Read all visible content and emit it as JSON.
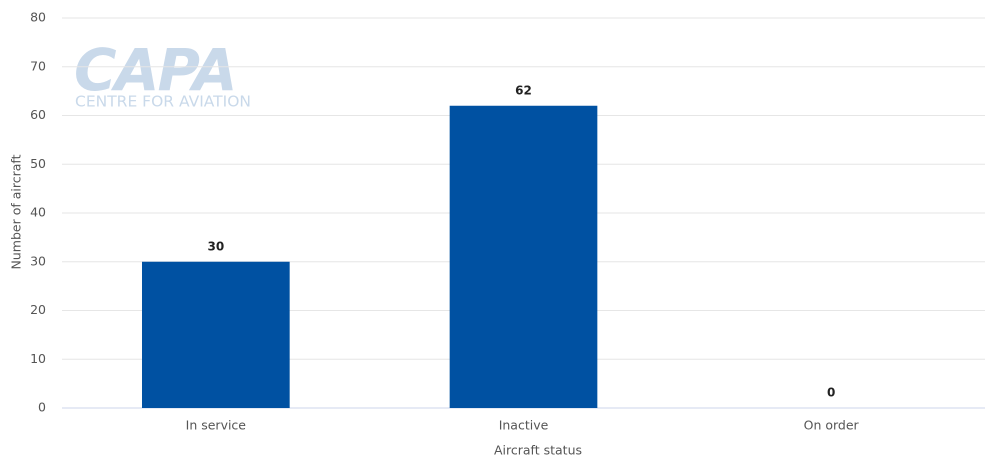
{
  "chart_data": {
    "type": "bar",
    "watermark": {
      "title": "CAPA",
      "subtitle": "CENTRE FOR AVIATION"
    },
    "xlabel": "Aircraft status",
    "ylabel": "Number of aircraft",
    "categories": [
      "In service",
      "Inactive",
      "On order"
    ],
    "values": [
      30,
      62,
      0
    ],
    "color": "#0051a2",
    "ylim": [
      0,
      80
    ],
    "yticks": [
      0,
      10,
      20,
      30,
      40,
      50,
      60,
      70,
      80
    ],
    "grid": true
  }
}
